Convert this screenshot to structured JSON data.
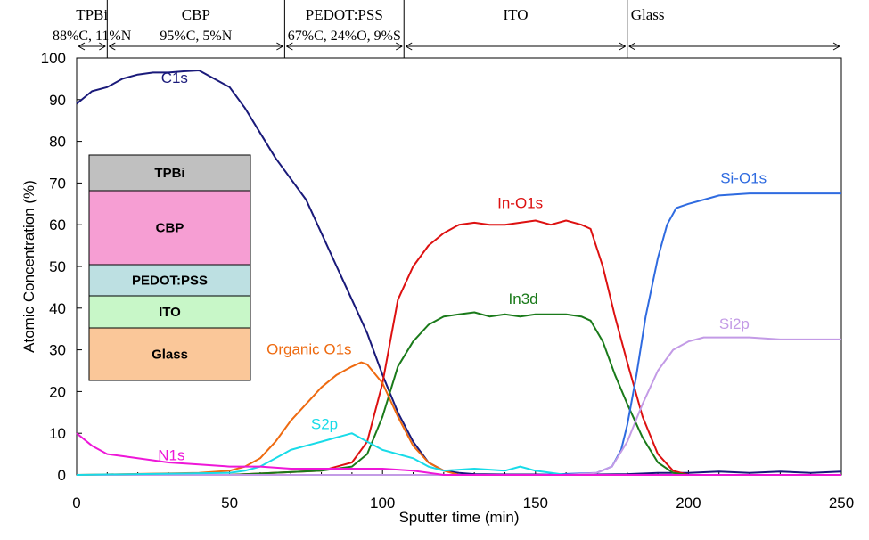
{
  "chart_data": {
    "type": "line",
    "xlabel": "Sputter time (min)",
    "ylabel": "Atomic Concentration (%)",
    "xlim": [
      0,
      250
    ],
    "ylim": [
      0,
      100
    ],
    "x_ticks": [
      "0",
      "50",
      "100",
      "150",
      "200",
      "250"
    ],
    "y_ticks": [
      "0",
      "10",
      "20",
      "30",
      "40",
      "50",
      "60",
      "70",
      "80",
      "90",
      "100"
    ],
    "grid": false,
    "legend": "none",
    "regions": [
      {
        "name": "TPBi",
        "detail": "88%C, 11%N",
        "start": 0,
        "end": 10
      },
      {
        "name": "CBP",
        "detail": "95%C, 5%N",
        "start": 10,
        "end": 68
      },
      {
        "name": "PEDOT:PSS",
        "detail": "67%C, 24%O, 9%S",
        "start": 68,
        "end": 107
      },
      {
        "name": "ITO",
        "detail": "",
        "start": 107,
        "end": 180
      },
      {
        "name": "Glass",
        "detail": "",
        "start": 180,
        "end": 250
      }
    ],
    "series": [
      {
        "name": "C1s",
        "color": "#1a1a7a",
        "x": [
          0,
          5,
          10,
          15,
          20,
          25,
          30,
          35,
          40,
          45,
          50,
          55,
          60,
          65,
          70,
          75,
          80,
          85,
          90,
          95,
          100,
          105,
          110,
          115,
          120,
          125,
          130,
          140,
          150,
          160,
          170,
          180,
          190,
          200,
          210,
          220,
          230,
          240,
          250
        ],
        "y": [
          89,
          92,
          93,
          95,
          96,
          96.5,
          96.5,
          96.8,
          97,
          95,
          93,
          88,
          82,
          76,
          71,
          66,
          58,
          50,
          42,
          34,
          24,
          15,
          8,
          3,
          1,
          0.5,
          0.2,
          0.1,
          0.1,
          0.1,
          0.1,
          0.2,
          0.5,
          0.5,
          0.8,
          0.5,
          0.8,
          0.5,
          0.8
        ]
      },
      {
        "name": "In-O1s",
        "color": "#dd1111",
        "x": [
          0,
          50,
          80,
          90,
          95,
          100,
          105,
          110,
          115,
          120,
          125,
          130,
          135,
          140,
          145,
          150,
          155,
          160,
          165,
          168,
          172,
          176,
          180,
          185,
          190,
          195,
          200,
          250
        ],
        "y": [
          0,
          0,
          1,
          3,
          8,
          22,
          42,
          50,
          55,
          58,
          60,
          60.5,
          60,
          60,
          60.5,
          61,
          60,
          61,
          60,
          59,
          50,
          38,
          27,
          14,
          5,
          1,
          0,
          0
        ]
      },
      {
        "name": "In3d",
        "color": "#1a7a1a",
        "x": [
          0,
          50,
          80,
          90,
          95,
          100,
          105,
          110,
          115,
          120,
          125,
          130,
          135,
          140,
          145,
          150,
          155,
          160,
          165,
          168,
          172,
          176,
          180,
          185,
          190,
          195,
          200,
          250
        ],
        "y": [
          0,
          0,
          1,
          2,
          5,
          14,
          26,
          32,
          36,
          38,
          38.5,
          39,
          38,
          38.5,
          38,
          38.5,
          38.5,
          38.5,
          38,
          37,
          32,
          24,
          17,
          9,
          3,
          0.5,
          0,
          0
        ]
      },
      {
        "name": "Si-O1s",
        "color": "#2f6be0",
        "x": [
          0,
          150,
          170,
          175,
          178,
          180,
          183,
          186,
          190,
          193,
          196,
          200,
          205,
          210,
          220,
          230,
          240,
          250
        ],
        "y": [
          0,
          0,
          0.5,
          2,
          6,
          12,
          24,
          38,
          52,
          60,
          64,
          65,
          66,
          67,
          67.5,
          67.5,
          67.5,
          67.5
        ]
      },
      {
        "name": "Si2p",
        "color": "#c39be6",
        "x": [
          0,
          160,
          170,
          175,
          180,
          185,
          190,
          195,
          200,
          205,
          210,
          220,
          230,
          240,
          250
        ],
        "y": [
          0,
          0,
          0.5,
          2,
          8,
          17,
          25,
          30,
          32,
          33,
          33,
          33,
          32.5,
          32.5,
          32.5
        ]
      },
      {
        "name": "Organic O1s",
        "color": "#ee6a10",
        "x": [
          0,
          40,
          50,
          55,
          60,
          65,
          70,
          75,
          80,
          85,
          90,
          93,
          95,
          100,
          105,
          110,
          115,
          120,
          125,
          250
        ],
        "y": [
          0,
          0.5,
          1,
          2,
          4,
          8,
          13,
          17,
          21,
          24,
          26,
          27,
          26.5,
          22,
          14,
          7,
          3,
          1,
          0,
          0
        ]
      },
      {
        "name": "S2p",
        "color": "#18dbe8",
        "x": [
          0,
          50,
          55,
          60,
          65,
          70,
          75,
          80,
          85,
          90,
          95,
          100,
          105,
          110,
          115,
          120,
          130,
          140,
          145,
          150,
          160,
          250
        ],
        "y": [
          0,
          0.5,
          1,
          2,
          4,
          6,
          7,
          8,
          9,
          10,
          8,
          6,
          5,
          4,
          2,
          1,
          1.5,
          1,
          2,
          1,
          0,
          0
        ]
      },
      {
        "name": "N1s",
        "color": "#ee17d8",
        "x": [
          0,
          5,
          10,
          15,
          20,
          30,
          40,
          50,
          60,
          70,
          80,
          90,
          100,
          110,
          120,
          250
        ],
        "y": [
          10,
          7,
          5,
          4.5,
          4,
          3,
          2.5,
          2,
          2,
          1.5,
          1.5,
          1.5,
          1.5,
          1,
          0,
          0
        ]
      }
    ],
    "series_labels": [
      {
        "text": "C1s",
        "x": 32,
        "y": 94
      },
      {
        "text": "In-O1s",
        "x": 145,
        "y": 64
      },
      {
        "text": "In3d",
        "x": 146,
        "y": 41
      },
      {
        "text": "Si-O1s",
        "x": 218,
        "y": 70
      },
      {
        "text": "Si2p",
        "x": 215,
        "y": 35
      },
      {
        "text": "Organic O1s",
        "x": 76,
        "y": 29
      },
      {
        "text": "S2p",
        "x": 81,
        "y": 11
      },
      {
        "text": "N1s",
        "x": 31,
        "y": 3.5
      }
    ]
  },
  "inset": {
    "layers": [
      {
        "label": "TPBi",
        "color": "#c0c0c0"
      },
      {
        "label": "CBP",
        "color": "#f69ed3"
      },
      {
        "label": "PEDOT:PSS",
        "color": "#bde0e2"
      },
      {
        "label": "ITO",
        "color": "#c8f7c8"
      },
      {
        "label": "Glass",
        "color": "#fac799"
      }
    ]
  }
}
